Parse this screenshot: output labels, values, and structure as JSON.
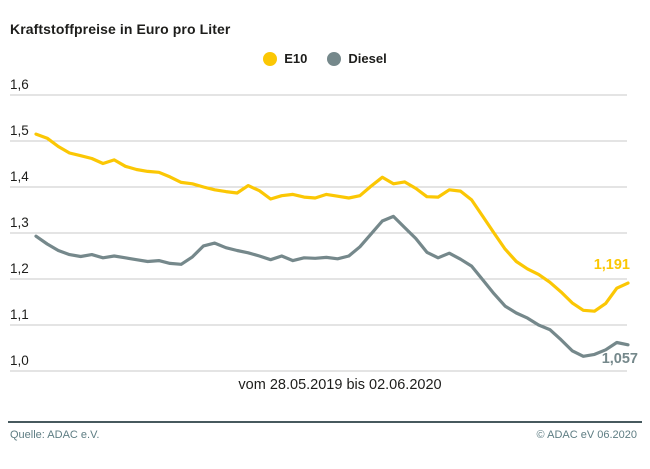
{
  "title": "Kraftstoffpreise in Euro pro Liter",
  "colors": {
    "e10": "#FBC704",
    "diesel": "#75888B",
    "grid": "#C9C9C9",
    "text": "#1D1D1B",
    "footer_text": "#5E7D83",
    "footer_line": "#47595E",
    "background": "#FFFFFF"
  },
  "chart_data": {
    "type": "line",
    "title": "Kraftstoffpreise in Euro pro Liter",
    "xlabel": "vom 28.05.2019 bis 02.06.2020",
    "ylabel": "Euro pro Liter",
    "x_period": {
      "start": "28.05.2019",
      "end": "02.06.2020",
      "interval": "weekly"
    },
    "ylim": [
      1.0,
      1.6
    ],
    "grid": "horizontal-only",
    "legend_position": "top-center",
    "yticks": [
      {
        "value": 1.6,
        "label": "1,6"
      },
      {
        "value": 1.5,
        "label": "1,5"
      },
      {
        "value": 1.4,
        "label": "1,4"
      },
      {
        "value": 1.3,
        "label": "1,3"
      },
      {
        "value": 1.2,
        "label": "1,2"
      },
      {
        "value": 1.1,
        "label": "1,1"
      },
      {
        "value": 1.0,
        "label": "1,0"
      }
    ],
    "series": [
      {
        "name": "E10",
        "color": "#FBC704",
        "end_label": "1,191",
        "last_value": 1.191,
        "values": [
          1.515,
          1.506,
          1.488,
          1.474,
          1.468,
          1.462,
          1.451,
          1.459,
          1.445,
          1.438,
          1.434,
          1.432,
          1.422,
          1.41,
          1.407,
          1.4,
          1.394,
          1.39,
          1.387,
          1.403,
          1.392,
          1.374,
          1.381,
          1.384,
          1.378,
          1.376,
          1.384,
          1.38,
          1.376,
          1.381,
          1.402,
          1.421,
          1.407,
          1.411,
          1.397,
          1.379,
          1.378,
          1.394,
          1.391,
          1.372,
          1.336,
          1.3,
          1.265,
          1.238,
          1.222,
          1.21,
          1.193,
          1.172,
          1.148,
          1.132,
          1.13,
          1.147,
          1.18,
          1.191
        ]
      },
      {
        "name": "Diesel",
        "color": "#75888B",
        "end_label": "1,057",
        "last_value": 1.057,
        "values": [
          1.293,
          1.276,
          1.262,
          1.253,
          1.249,
          1.253,
          1.246,
          1.25,
          1.246,
          1.242,
          1.238,
          1.24,
          1.234,
          1.232,
          1.248,
          1.272,
          1.278,
          1.268,
          1.262,
          1.257,
          1.25,
          1.242,
          1.25,
          1.24,
          1.246,
          1.245,
          1.247,
          1.244,
          1.25,
          1.27,
          1.298,
          1.326,
          1.336,
          1.312,
          1.288,
          1.258,
          1.246,
          1.256,
          1.243,
          1.228,
          1.198,
          1.168,
          1.141,
          1.126,
          1.115,
          1.1,
          1.09,
          1.068,
          1.044,
          1.032,
          1.036,
          1.046,
          1.062,
          1.057
        ]
      }
    ]
  },
  "footer": {
    "source": "Quelle: ADAC e.V.",
    "copyright": "© ADAC eV  06.2020"
  }
}
